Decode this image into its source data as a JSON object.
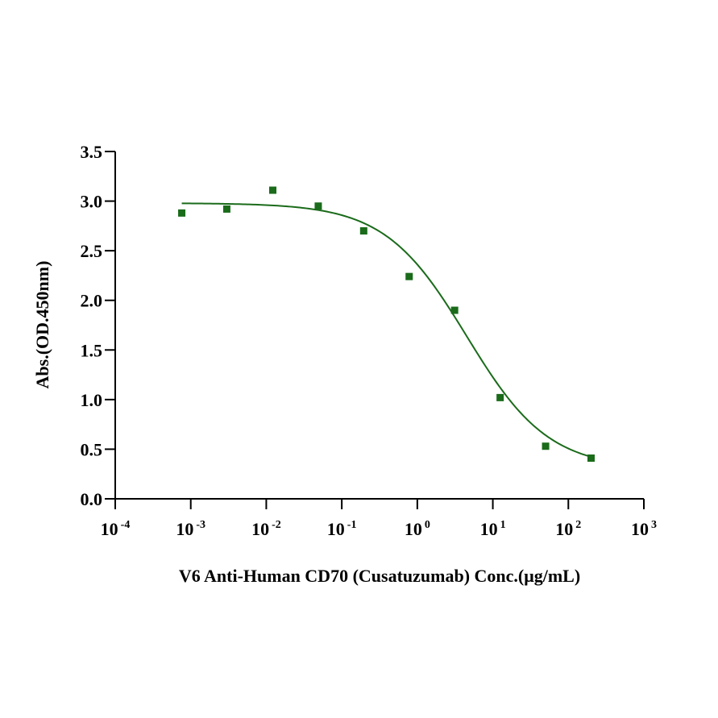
{
  "chart_data": {
    "type": "scatter",
    "title": "",
    "xlabel": "V6 Anti-Human CD70 (Cusatuzumab) Conc.(μg/mL)",
    "ylabel": "Abs.(OD.450nm)",
    "xscale": "log",
    "xlim": [
      0.0001,
      1000
    ],
    "ylim": [
      0,
      3.5
    ],
    "x_ticks": [
      {
        "base": "10",
        "exp": "-4",
        "value": 0.0001
      },
      {
        "base": "10",
        "exp": "-3",
        "value": 0.001
      },
      {
        "base": "10",
        "exp": "-2",
        "value": 0.01
      },
      {
        "base": "10",
        "exp": "-1",
        "value": 0.1
      },
      {
        "base": "10",
        "exp": "0",
        "value": 1
      },
      {
        "base": "10",
        "exp": "1",
        "value": 10
      },
      {
        "base": "10",
        "exp": "2",
        "value": 100
      },
      {
        "base": "10",
        "exp": "3",
        "value": 1000
      }
    ],
    "y_ticks": [
      "0.0",
      "0.5",
      "1.0",
      "1.5",
      "2.0",
      "2.5",
      "3.0",
      "3.5"
    ],
    "grid": false,
    "legend": "none",
    "color": "#1a6b1a",
    "points": [
      {
        "x": 0.00076,
        "y": 2.88
      },
      {
        "x": 0.003,
        "y": 2.92
      },
      {
        "x": 0.0122,
        "y": 3.11
      },
      {
        "x": 0.0488,
        "y": 2.95
      },
      {
        "x": 0.195,
        "y": 2.7
      },
      {
        "x": 0.78,
        "y": 2.24
      },
      {
        "x": 3.12,
        "y": 1.9
      },
      {
        "x": 12.5,
        "y": 1.02
      },
      {
        "x": 50,
        "y": 0.53
      },
      {
        "x": 200,
        "y": 0.41
      }
    ],
    "fit": {
      "model": "4PL",
      "top": 2.98,
      "bottom": 0.3,
      "ec50": 4.5,
      "hill": 0.8,
      "x_range": [
        0.00076,
        200
      ]
    }
  }
}
